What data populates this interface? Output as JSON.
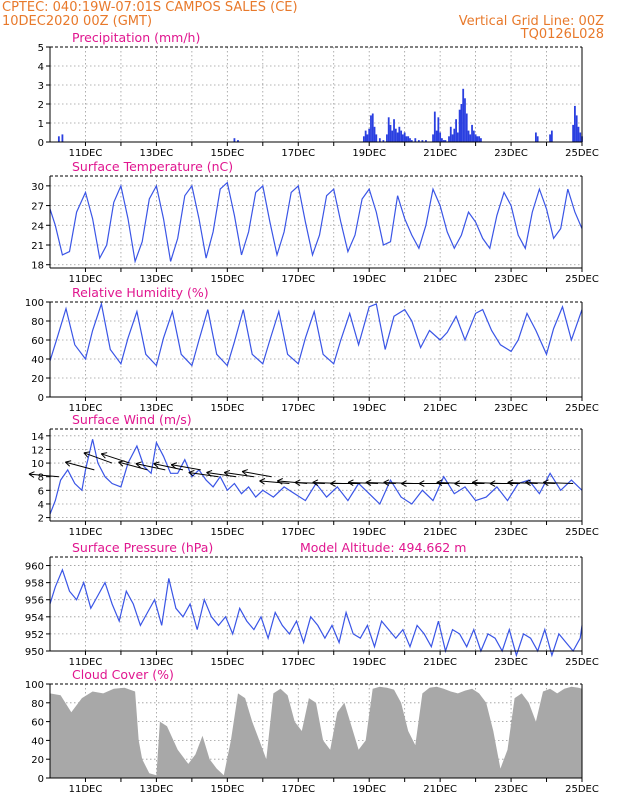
{
  "header": {
    "line1_left": "CPTEC:   040:19W-07:01S   CAMPOS SALES (CE)",
    "line2_left": "10DEC2020 00Z (GMT)",
    "line2_right": "Vertical Grid Line: 00Z",
    "line3_right": "TQ0126L028"
  },
  "colors": {
    "header": "#e8792b",
    "title": "#e0168f",
    "line": "#3a55e6",
    "bar": "#2a3fe0",
    "cloud": "#a8a8a8",
    "grid": "#9a9a9a",
    "axis": "#000000",
    "arrow": "#000000"
  },
  "x_axis": {
    "start_day": 10,
    "end_day": 25,
    "tick_labels": [
      "11DEC",
      "13DEC",
      "15DEC",
      "17DEC",
      "19DEC",
      "21DEC",
      "23DEC",
      "25DEC"
    ]
  },
  "chart_data": [
    {
      "id": "precip",
      "type": "bar",
      "title": "Precipitation (mm/h)",
      "ylim": [
        0,
        5
      ],
      "yticks": [
        0,
        1,
        2,
        3,
        4,
        5
      ],
      "x": [
        10.25,
        10.35,
        15.2,
        15.3,
        18.85,
        18.9,
        18.95,
        19.0,
        19.05,
        19.1,
        19.15,
        19.2,
        19.3,
        19.4,
        19.5,
        19.55,
        19.6,
        19.65,
        19.7,
        19.75,
        19.8,
        19.85,
        19.9,
        19.95,
        20.0,
        20.05,
        20.1,
        20.15,
        20.2,
        20.3,
        20.4,
        20.5,
        20.6,
        20.8,
        20.85,
        20.9,
        20.95,
        21.0,
        21.05,
        21.1,
        21.15,
        21.25,
        21.3,
        21.35,
        21.4,
        21.45,
        21.5,
        21.55,
        21.6,
        21.65,
        21.7,
        21.75,
        21.8,
        21.85,
        21.9,
        21.95,
        22.0,
        22.05,
        22.1,
        22.15,
        23.7,
        23.75,
        24.1,
        24.15,
        24.75,
        24.8,
        24.85,
        24.9,
        24.95,
        25.0
      ],
      "values": [
        0.3,
        0.4,
        0.2,
        0.1,
        0.3,
        0.6,
        0.4,
        0.7,
        1.4,
        1.5,
        0.8,
        0.4,
        0.2,
        0.1,
        0.4,
        1.3,
        0.9,
        0.6,
        1.2,
        0.7,
        0.5,
        0.8,
        0.6,
        0.4,
        0.5,
        0.3,
        0.3,
        0.2,
        0.1,
        0.2,
        0.1,
        0.1,
        0.1,
        0.4,
        1.6,
        0.6,
        1.3,
        0.5,
        0.2,
        0.1,
        0.1,
        0.3,
        0.8,
        0.4,
        0.7,
        1.2,
        0.5,
        1.7,
        2.0,
        2.8,
        2.3,
        1.5,
        0.6,
        0.4,
        0.9,
        0.6,
        0.4,
        0.3,
        0.3,
        0.2,
        0.5,
        0.3,
        0.4,
        0.6,
        0.9,
        1.9,
        1.4,
        0.8,
        0.5,
        0.3
      ]
    },
    {
      "id": "temperature",
      "type": "line",
      "title": "Surface Temperature (nC)",
      "ylim": [
        17.5,
        31.5
      ],
      "yticks": [
        18,
        21,
        24,
        27,
        30
      ],
      "x": [
        10.0,
        10.15,
        10.35,
        10.55,
        10.75,
        11.0,
        11.2,
        11.4,
        11.6,
        11.8,
        12.0,
        12.2,
        12.4,
        12.6,
        12.8,
        13.0,
        13.2,
        13.4,
        13.6,
        13.8,
        14.0,
        14.2,
        14.4,
        14.6,
        14.8,
        15.0,
        15.2,
        15.4,
        15.6,
        15.8,
        16.0,
        16.2,
        16.4,
        16.6,
        16.8,
        17.0,
        17.2,
        17.4,
        17.6,
        17.8,
        18.0,
        18.2,
        18.4,
        18.6,
        18.8,
        19.0,
        19.2,
        19.4,
        19.6,
        19.8,
        20.0,
        20.2,
        20.4,
        20.6,
        20.8,
        21.0,
        21.2,
        21.4,
        21.6,
        21.8,
        22.0,
        22.2,
        22.4,
        22.6,
        22.8,
        23.0,
        23.2,
        23.4,
        23.6,
        23.8,
        24.0,
        24.2,
        24.4,
        24.6,
        24.8,
        25.0
      ],
      "values": [
        26.5,
        24.0,
        19.5,
        20.0,
        26.0,
        29.0,
        25.0,
        19.0,
        21.0,
        27.5,
        30.0,
        25.0,
        18.5,
        21.5,
        28.0,
        30.0,
        25.0,
        18.5,
        22.0,
        28.5,
        30.0,
        25.0,
        19.0,
        23.0,
        29.5,
        30.5,
        25.5,
        19.5,
        23.0,
        29.0,
        30.0,
        24.5,
        19.5,
        23.0,
        29.0,
        30.0,
        24.5,
        19.5,
        22.5,
        28.5,
        29.5,
        24.5,
        20.0,
        22.5,
        28.0,
        29.5,
        26.0,
        21.0,
        21.5,
        28.5,
        25.0,
        22.5,
        20.5,
        24.0,
        29.5,
        27.0,
        23.0,
        20.5,
        22.5,
        26.0,
        24.5,
        22.0,
        20.5,
        25.5,
        29.0,
        27.0,
        22.5,
        20.5,
        26.0,
        29.5,
        26.5,
        22.0,
        23.5,
        29.5,
        26.0,
        23.5
      ]
    },
    {
      "id": "humidity",
      "type": "line",
      "title": "Relative Humidity (%)",
      "ylim": [
        0,
        100
      ],
      "yticks": [
        0,
        20,
        40,
        60,
        80,
        100
      ],
      "x": [
        10.0,
        10.2,
        10.45,
        10.7,
        11.0,
        11.2,
        11.45,
        11.7,
        12.0,
        12.2,
        12.45,
        12.7,
        13.0,
        13.2,
        13.45,
        13.7,
        14.0,
        14.2,
        14.45,
        14.7,
        15.0,
        15.2,
        15.45,
        15.7,
        16.0,
        16.2,
        16.45,
        16.7,
        17.0,
        17.2,
        17.45,
        17.7,
        18.0,
        18.2,
        18.45,
        18.7,
        19.0,
        19.2,
        19.45,
        19.7,
        20.0,
        20.2,
        20.45,
        20.7,
        21.0,
        21.2,
        21.45,
        21.7,
        22.0,
        22.2,
        22.45,
        22.7,
        23.0,
        23.2,
        23.45,
        23.7,
        24.0,
        24.2,
        24.45,
        24.7,
        25.0
      ],
      "values": [
        38.0,
        62.0,
        93.0,
        55.0,
        40.0,
        70.0,
        98.0,
        50.0,
        35.0,
        62.0,
        90.0,
        45.0,
        33.0,
        62.0,
        90.0,
        45.0,
        33.0,
        60.0,
        92.0,
        45.0,
        33.0,
        58.0,
        92.0,
        45.0,
        35.0,
        60.0,
        90.0,
        45.0,
        35.0,
        62.0,
        90.0,
        45.0,
        35.0,
        60.0,
        88.0,
        55.0,
        95.0,
        98.0,
        50.0,
        85.0,
        92.0,
        80.0,
        52.0,
        70.0,
        60.0,
        68.0,
        85.0,
        60.0,
        88.0,
        92.0,
        70.0,
        55.0,
        48.0,
        60.0,
        88.0,
        70.0,
        45.0,
        72.0,
        95.0,
        60.0,
        92.0
      ]
    },
    {
      "id": "wind",
      "type": "line",
      "title": "Surface Wind (m/s)",
      "ylim": [
        1.5,
        15.0
      ],
      "yticks": [
        2,
        4,
        6,
        8,
        10,
        12,
        14
      ],
      "x": [
        10.0,
        10.15,
        10.3,
        10.5,
        10.7,
        10.9,
        11.0,
        11.2,
        11.35,
        11.55,
        11.75,
        12.0,
        12.2,
        12.45,
        12.65,
        12.85,
        13.0,
        13.2,
        13.4,
        13.6,
        13.8,
        14.0,
        14.2,
        14.4,
        14.6,
        14.8,
        15.0,
        15.2,
        15.4,
        15.6,
        15.8,
        16.0,
        16.3,
        16.6,
        16.9,
        17.2,
        17.5,
        17.8,
        18.1,
        18.4,
        18.7,
        19.0,
        19.3,
        19.6,
        19.9,
        20.2,
        20.5,
        20.8,
        21.1,
        21.4,
        21.7,
        22.0,
        22.3,
        22.6,
        22.9,
        23.2,
        23.5,
        23.8,
        24.1,
        24.4,
        24.7,
        25.0
      ],
      "values": [
        2.5,
        4.5,
        7.5,
        9.0,
        7.0,
        6.0,
        9.0,
        13.5,
        10.0,
        8.0,
        7.0,
        6.5,
        10.0,
        12.5,
        9.5,
        8.5,
        13.0,
        11.0,
        8.5,
        8.5,
        10.5,
        8.0,
        9.0,
        7.5,
        6.5,
        8.0,
        6.0,
        7.0,
        5.5,
        6.5,
        5.0,
        6.0,
        5.0,
        6.5,
        5.5,
        4.5,
        7.0,
        5.0,
        6.5,
        4.5,
        7.0,
        5.5,
        4.0,
        7.5,
        5.0,
        4.0,
        6.0,
        4.5,
        8.0,
        5.5,
        6.5,
        4.5,
        5.0,
        6.5,
        4.5,
        7.0,
        7.5,
        5.5,
        8.5,
        6.0,
        7.5,
        6.0
      ],
      "arrow_days": [
        10.25,
        11.25,
        11.75,
        12.25,
        12.75,
        13.25,
        13.75,
        14.25,
        14.75,
        15.25,
        15.75,
        16.25,
        16.75,
        17.25,
        17.75,
        18.25,
        18.75,
        19.25,
        19.75,
        20.25,
        20.75,
        21.25,
        21.75,
        22.25,
        22.75,
        23.25,
        23.75,
        24.25,
        24.75
      ],
      "arrow_speed": [
        8,
        9,
        10,
        10,
        9,
        9,
        9,
        9,
        8,
        8,
        8,
        8,
        7,
        7,
        7,
        7,
        7,
        7,
        7,
        7,
        7,
        7,
        7,
        7,
        7,
        7,
        7,
        7,
        7
      ],
      "arrow_dir_deg": [
        175,
        165,
        160,
        162,
        165,
        168,
        168,
        170,
        172,
        172,
        172,
        170,
        175,
        175,
        178,
        178,
        180,
        178,
        178,
        178,
        180,
        180,
        178,
        180,
        178,
        180,
        178,
        178,
        178
      ]
    },
    {
      "id": "pressure",
      "type": "line",
      "title": "Surface Pressure (hPa)",
      "annotation": "Model Altitude: 494.662 m",
      "ylim": [
        950,
        961
      ],
      "yticks": [
        950,
        952,
        954,
        956,
        958,
        960
      ],
      "x": [
        10.0,
        10.15,
        10.35,
        10.55,
        10.75,
        10.95,
        11.15,
        11.35,
        11.55,
        11.75,
        11.95,
        12.15,
        12.35,
        12.55,
        12.75,
        12.95,
        13.15,
        13.35,
        13.55,
        13.75,
        13.95,
        14.15,
        14.35,
        14.55,
        14.75,
        14.95,
        15.15,
        15.35,
        15.55,
        15.75,
        15.95,
        16.15,
        16.35,
        16.55,
        16.75,
        16.95,
        17.15,
        17.35,
        17.55,
        17.75,
        17.95,
        18.15,
        18.35,
        18.55,
        18.75,
        18.95,
        19.15,
        19.35,
        19.55,
        19.75,
        19.95,
        20.15,
        20.35,
        20.55,
        20.75,
        20.95,
        21.15,
        21.35,
        21.55,
        21.75,
        21.95,
        22.15,
        22.35,
        22.55,
        22.75,
        22.95,
        23.15,
        23.35,
        23.55,
        23.75,
        23.95,
        24.15,
        24.35,
        24.55,
        24.75,
        24.95,
        25.0
      ],
      "values": [
        955.5,
        957.5,
        959.5,
        957.0,
        956.0,
        958.0,
        955.0,
        956.5,
        958.0,
        955.5,
        953.5,
        957.0,
        955.5,
        953.0,
        954.5,
        956.0,
        953.0,
        958.5,
        955.0,
        954.0,
        955.5,
        952.5,
        956.0,
        954.0,
        953.0,
        954.0,
        952.0,
        955.0,
        953.5,
        952.5,
        954.0,
        951.5,
        954.5,
        953.0,
        952.0,
        953.5,
        951.0,
        954.0,
        953.0,
        951.5,
        953.0,
        951.0,
        954.5,
        952.0,
        951.5,
        953.0,
        950.5,
        953.5,
        952.5,
        951.5,
        952.5,
        950.5,
        953.0,
        952.0,
        950.5,
        953.5,
        950.0,
        952.5,
        952.0,
        950.5,
        952.5,
        950.0,
        952.0,
        951.5,
        950.0,
        952.5,
        949.5,
        952.0,
        951.5,
        950.0,
        952.5,
        949.5,
        952.0,
        951.0,
        950.0,
        951.5,
        953.0
      ]
    },
    {
      "id": "cloud",
      "type": "area",
      "title": "Cloud Cover (%)",
      "ylim": [
        0,
        100
      ],
      "yticks": [
        0,
        20,
        40,
        60,
        80,
        100
      ],
      "x": [
        10.0,
        10.3,
        10.6,
        10.9,
        11.2,
        11.5,
        11.8,
        12.1,
        12.4,
        12.5,
        12.6,
        12.8,
        13.0,
        13.1,
        13.3,
        13.6,
        13.9,
        14.1,
        14.3,
        14.5,
        14.7,
        14.9,
        15.1,
        15.3,
        15.5,
        15.7,
        15.9,
        16.1,
        16.3,
        16.5,
        16.7,
        16.9,
        17.1,
        17.3,
        17.5,
        17.7,
        17.9,
        18.1,
        18.3,
        18.5,
        18.7,
        18.9,
        19.1,
        19.3,
        19.5,
        19.7,
        19.9,
        20.1,
        20.3,
        20.5,
        20.7,
        20.9,
        21.1,
        21.3,
        21.5,
        21.7,
        21.9,
        22.1,
        22.3,
        22.5,
        22.7,
        22.9,
        23.1,
        23.3,
        23.5,
        23.7,
        23.9,
        24.1,
        24.3,
        24.5,
        24.7,
        24.9,
        25.0
      ],
      "values": [
        90.0,
        88.0,
        70.0,
        85.0,
        92.0,
        90.0,
        95.0,
        96.0,
        92.0,
        40.0,
        20.0,
        5.0,
        3.0,
        60.0,
        55.0,
        30.0,
        15.0,
        25.0,
        45.0,
        20.0,
        10.0,
        3.0,
        40.0,
        90.0,
        85.0,
        60.0,
        40.0,
        20.0,
        90.0,
        95.0,
        88.0,
        60.0,
        50.0,
        85.0,
        80.0,
        40.0,
        30.0,
        70.0,
        80.0,
        55.0,
        30.0,
        40.0,
        95.0,
        97.0,
        96.0,
        94.0,
        80.0,
        50.0,
        35.0,
        90.0,
        96.0,
        97.0,
        95.0,
        92.0,
        90.0,
        93.0,
        95.0,
        90.0,
        80.0,
        50.0,
        10.0,
        30.0,
        85.0,
        90.0,
        80.0,
        60.0,
        92.0,
        95.0,
        90.0,
        95.0,
        97.0,
        96.0,
        95.0
      ]
    }
  ]
}
